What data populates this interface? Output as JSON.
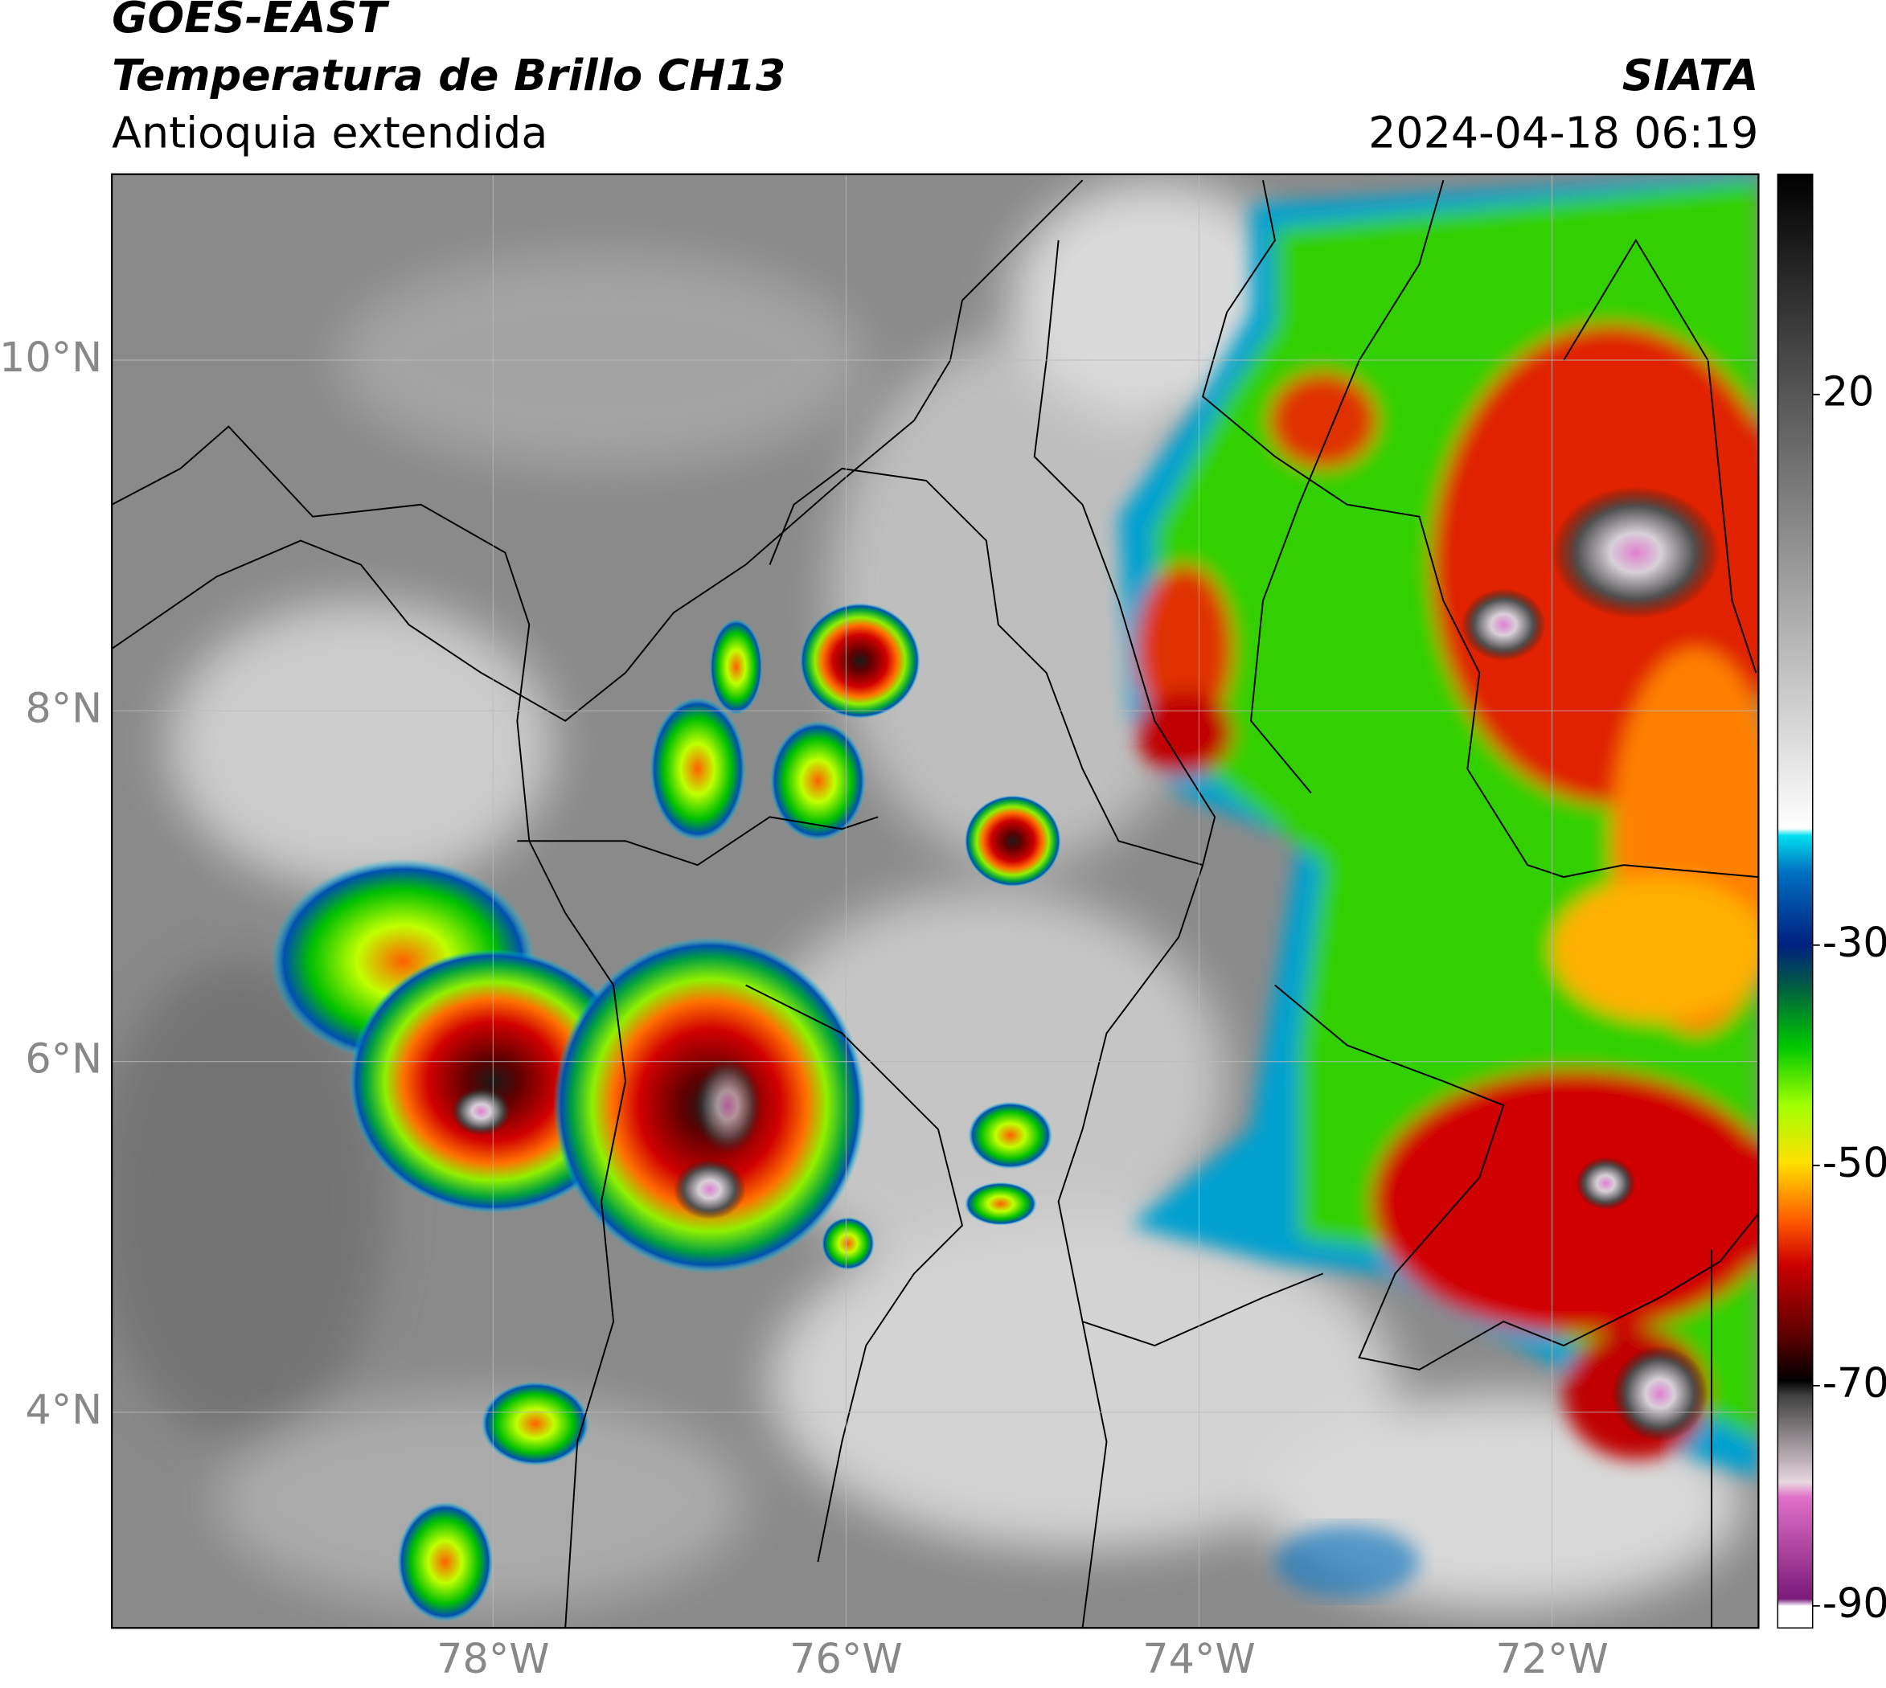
{
  "header": {
    "title": "GOES-EAST",
    "subtitle": "Temperatura de Brillo CH13",
    "region": "Antioquia extendida",
    "source": "SIATA",
    "timestamp": "2024-04-18 06:19"
  },
  "map": {
    "lon_range": [
      -80.16,
      -70.83
    ],
    "lat_range": [
      2.77,
      11.06
    ],
    "lon_ticks": [
      {
        "value": -78,
        "label": "78°W"
      },
      {
        "value": -76,
        "label": "76°W"
      },
      {
        "value": -74,
        "label": "74°W"
      },
      {
        "value": -72,
        "label": "72°W"
      }
    ],
    "lat_ticks": [
      {
        "value": 4,
        "label": "4°N"
      },
      {
        "value": 6,
        "label": "6°N"
      },
      {
        "value": 8,
        "label": "8°N"
      },
      {
        "value": 10,
        "label": "10°N"
      }
    ]
  },
  "colorbar": {
    "range": [
      -92,
      40
    ],
    "ticks": [
      -90,
      -70,
      -50,
      -30,
      20
    ]
  }
}
